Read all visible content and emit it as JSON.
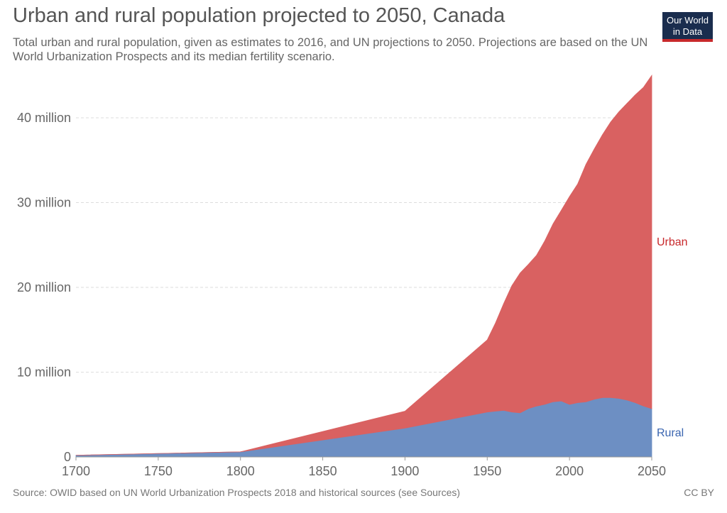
{
  "header": {
    "title": "Urban and rural population projected to 2050, Canada",
    "subtitle": "Total urban and rural population, given as estimates to 2016, and UN projections to 2050. Projections are based on the UN World Urbanization Prospects and its median fertility scenario."
  },
  "logo": {
    "line1": "Our World",
    "line2": "in Data",
    "bg_color": "#1a2d4e",
    "accent_color": "#c8292c"
  },
  "footer": {
    "source": "Source: OWID based on UN World Urbanization Prospects 2018 and historical sources (see Sources)",
    "license": "CC BY"
  },
  "chart_data": {
    "type": "area",
    "stacked": true,
    "title": "Urban and rural population projected to 2050, Canada",
    "xlim": [
      1700,
      2050
    ],
    "ylim": [
      0,
      45000000
    ],
    "x_ticks": [
      1700,
      1750,
      1800,
      1850,
      1900,
      1950,
      2000,
      2050
    ],
    "y_ticks": [
      {
        "value": 0,
        "label": "0"
      },
      {
        "value": 10000000,
        "label": "10 million"
      },
      {
        "value": 20000000,
        "label": "20 million"
      },
      {
        "value": 30000000,
        "label": "30 million"
      },
      {
        "value": 40000000,
        "label": "40 million"
      }
    ],
    "grid": "horizontal dashed",
    "x": [
      1700,
      1800,
      1900,
      1950,
      1955,
      1960,
      1965,
      1970,
      1975,
      1980,
      1985,
      1990,
      1995,
      2000,
      2005,
      2010,
      2015,
      2020,
      2025,
      2030,
      2035,
      2040,
      2045,
      2050
    ],
    "series": [
      {
        "name": "Rural",
        "color": "#6d8fc3",
        "label_color": "#3a65b0",
        "values": [
          200000,
          600000,
          3400000,
          5300000,
          5400000,
          5500000,
          5300000,
          5200000,
          5700000,
          6000000,
          6200000,
          6500000,
          6600000,
          6200000,
          6400000,
          6500000,
          6800000,
          7000000,
          7000000,
          6900000,
          6700000,
          6400000,
          6000000,
          5700000
        ]
      },
      {
        "name": "Urban",
        "color": "#d96161",
        "label_color": "#c8292c",
        "values": [
          0,
          0,
          2000000,
          8500000,
          10400000,
          12600000,
          14900000,
          16500000,
          17000000,
          17800000,
          19300000,
          21000000,
          22500000,
          24500000,
          25800000,
          28000000,
          29500000,
          31000000,
          32500000,
          33800000,
          35000000,
          36300000,
          37600000,
          39300000
        ]
      }
    ]
  }
}
